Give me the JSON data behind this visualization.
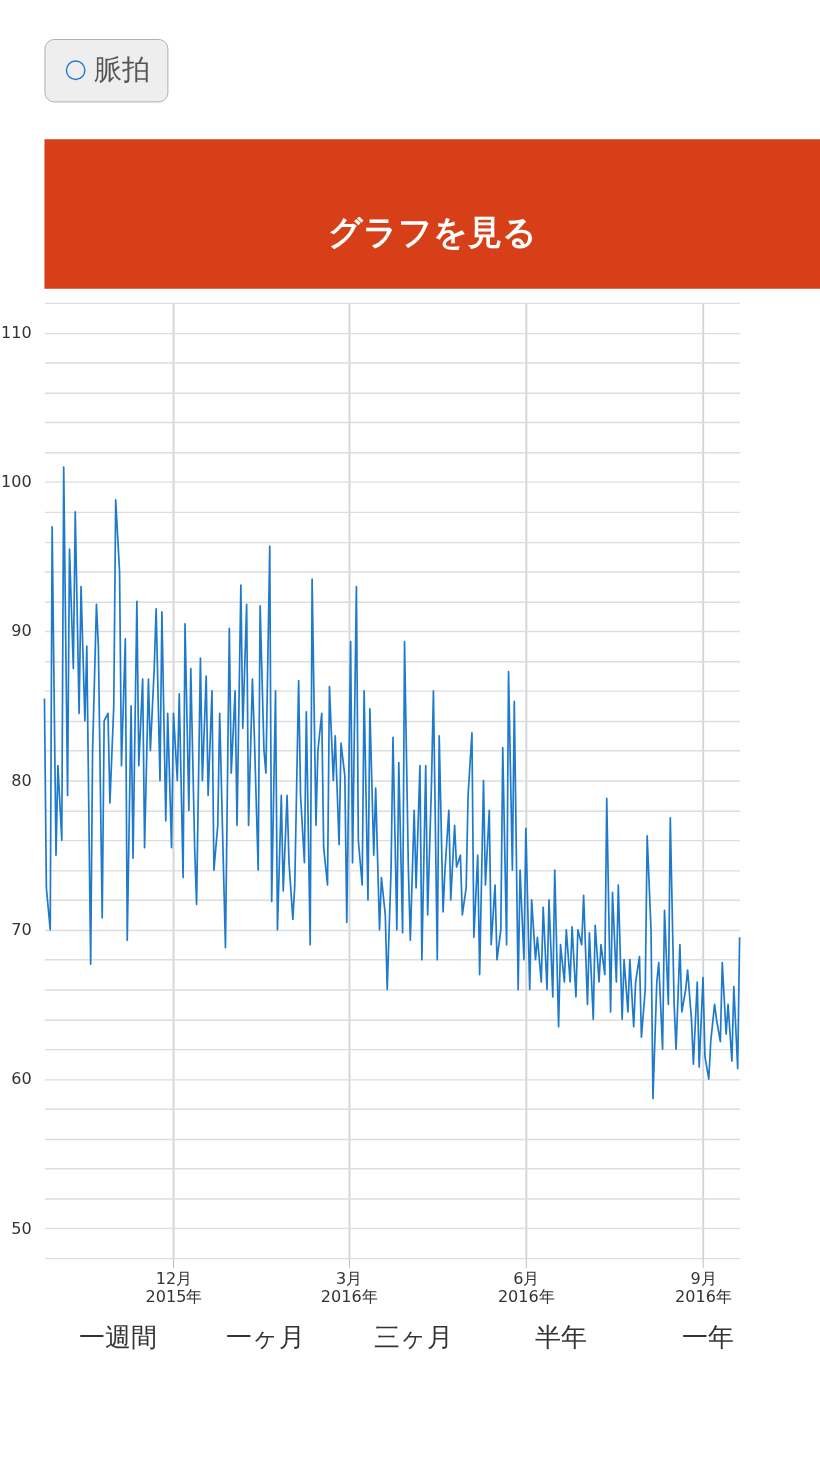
{
  "chart_data": {
    "type": "line",
    "title": "グラフを見る",
    "legend": "top",
    "grid": true,
    "marker": "none",
    "line_style": "solid",
    "xlim": [
      "2015-09-25",
      "2016-09-20"
    ],
    "xticks": [
      {
        "value": "2015-12-01",
        "label": "12月\n2015年"
      },
      {
        "value": "2016-03-01",
        "label": "3月\n2016年"
      },
      {
        "value": "2016-06-01",
        "label": "6月\n2016年"
      },
      {
        "value": "2016-09-01",
        "label": "9月\n2016年"
      }
    ],
    "ylim": [
      48,
      112
    ],
    "yticks": [
      {
        "value": 48,
        "label": null
      },
      50,
      {
        "value": 52,
        "label": null
      },
      {
        "value": 54,
        "label": null
      },
      {
        "value": 56,
        "label": null
      },
      {
        "value": 58,
        "label": null
      },
      60,
      {
        "value": 62,
        "label": null
      },
      {
        "value": 64,
        "label": null
      },
      {
        "value": 66,
        "label": null
      },
      {
        "value": 68,
        "label": null
      },
      70,
      {
        "value": 72,
        "label": null
      },
      {
        "value": 74,
        "label": null
      },
      {
        "value": 76,
        "label": null
      },
      {
        "value": 78,
        "label": null
      },
      80,
      {
        "value": 82,
        "label": null
      },
      {
        "value": 84,
        "label": null
      },
      {
        "value": 86,
        "label": null
      },
      {
        "value": 88,
        "label": null
      },
      90,
      {
        "value": 92,
        "label": null
      },
      {
        "value": 94,
        "label": null
      },
      {
        "value": 96,
        "label": null
      },
      {
        "value": 98,
        "label": null
      },
      100,
      {
        "value": 102,
        "label": null
      },
      {
        "value": 104,
        "label": null
      },
      {
        "value": 106,
        "label": null
      },
      {
        "value": 108,
        "label": null
      },
      110,
      {
        "value": 112,
        "label": null
      }
    ],
    "annotations": [
      "一週間",
      "一ヶ月",
      "三ヶ月",
      "半年",
      "一年"
    ],
    "x": [
      "2015-09-25",
      "2015-09-26",
      "2015-09-28",
      "2015-09-29",
      "2015-10-01",
      "2015-10-02",
      "2015-10-04",
      "2015-10-05",
      "2015-10-07",
      "2015-10-08",
      "2015-10-10",
      "2015-10-11",
      "2015-10-13",
      "2015-10-14",
      "2015-10-16",
      "2015-10-17",
      "2015-10-19",
      "2015-10-20",
      "2015-10-22",
      "2015-10-23",
      "2015-10-25",
      "2015-10-26",
      "2015-10-28",
      "2015-10-29",
      "2015-10-31",
      "2015-11-01",
      "2015-11-03",
      "2015-11-04",
      "2015-11-06",
      "2015-11-07",
      "2015-11-09",
      "2015-11-10",
      "2015-11-12",
      "2015-11-13",
      "2015-11-15",
      "2015-11-16",
      "2015-11-18",
      "2015-11-19",
      "2015-11-21",
      "2015-11-22",
      "2015-11-24",
      "2015-11-25",
      "2015-11-27",
      "2015-11-28",
      "2015-11-30",
      "2015-12-01",
      "2015-12-03",
      "2015-12-04",
      "2015-12-06",
      "2015-12-07",
      "2015-12-09",
      "2015-12-10",
      "2015-12-12",
      "2015-12-13",
      "2015-12-15",
      "2015-12-16",
      "2015-12-18",
      "2015-12-19",
      "2015-12-21",
      "2015-12-22",
      "2015-12-24",
      "2015-12-25",
      "2015-12-27",
      "2015-12-28",
      "2015-12-30",
      "2015-12-31",
      "2016-01-02",
      "2016-01-03",
      "2016-01-05",
      "2016-01-06",
      "2016-01-08",
      "2016-01-09",
      "2016-01-11",
      "2016-01-12",
      "2016-01-14",
      "2016-01-15",
      "2016-01-17",
      "2016-01-18",
      "2016-01-20",
      "2016-01-21",
      "2016-01-23",
      "2016-01-24",
      "2016-01-26",
      "2016-01-27",
      "2016-01-29",
      "2016-01-30",
      "2016-02-01",
      "2016-02-02",
      "2016-02-04",
      "2016-02-05",
      "2016-02-07",
      "2016-02-08",
      "2016-02-10",
      "2016-02-11",
      "2016-02-13",
      "2016-02-14",
      "2016-02-16",
      "2016-02-17",
      "2016-02-19",
      "2016-02-20",
      "2016-02-22",
      "2016-02-23",
      "2016-02-25",
      "2016-02-26",
      "2016-02-28",
      "2016-02-29",
      "2016-03-02",
      "2016-03-03",
      "2016-03-05",
      "2016-03-06",
      "2016-03-08",
      "2016-03-09",
      "2016-03-11",
      "2016-03-12",
      "2016-03-14",
      "2016-03-15",
      "2016-03-17",
      "2016-03-18",
      "2016-03-20",
      "2016-03-21",
      "2016-03-23",
      "2016-03-24",
      "2016-03-26",
      "2016-03-27",
      "2016-03-29",
      "2016-03-30",
      "2016-04-01",
      "2016-04-02",
      "2016-04-04",
      "2016-04-05",
      "2016-04-07",
      "2016-04-08",
      "2016-04-10",
      "2016-04-11",
      "2016-04-13",
      "2016-04-14",
      "2016-04-16",
      "2016-04-17",
      "2016-04-19",
      "2016-04-20",
      "2016-04-22",
      "2016-04-23",
      "2016-04-25",
      "2016-04-26",
      "2016-04-28",
      "2016-04-29",
      "2016-05-01",
      "2016-05-02",
      "2016-05-04",
      "2016-05-05",
      "2016-05-07",
      "2016-05-08",
      "2016-05-10",
      "2016-05-11",
      "2016-05-13",
      "2016-05-14",
      "2016-05-16",
      "2016-05-17",
      "2016-05-19",
      "2016-05-20",
      "2016-05-22",
      "2016-05-23",
      "2016-05-25",
      "2016-05-26",
      "2016-05-28",
      "2016-05-29",
      "2016-05-31",
      "2016-06-01",
      "2016-06-03",
      "2016-06-04",
      "2016-06-06",
      "2016-06-07",
      "2016-06-09",
      "2016-06-10",
      "2016-06-12",
      "2016-06-13",
      "2016-06-15",
      "2016-06-16",
      "2016-06-18",
      "2016-06-19",
      "2016-06-21",
      "2016-06-22",
      "2016-06-24",
      "2016-06-25",
      "2016-06-27",
      "2016-06-28",
      "2016-06-30",
      "2016-07-01",
      "2016-07-03",
      "2016-07-04",
      "2016-07-06",
      "2016-07-07",
      "2016-07-09",
      "2016-07-10",
      "2016-07-12",
      "2016-07-13",
      "2016-07-15",
      "2016-07-16",
      "2016-07-18",
      "2016-07-19",
      "2016-07-21",
      "2016-07-22",
      "2016-07-24",
      "2016-07-25",
      "2016-07-27",
      "2016-07-28",
      "2016-07-30",
      "2016-07-31",
      "2016-08-02",
      "2016-08-03",
      "2016-08-05",
      "2016-08-06",
      "2016-08-08",
      "2016-08-09",
      "2016-08-11",
      "2016-08-12",
      "2016-08-14",
      "2016-08-15",
      "2016-08-17",
      "2016-08-18",
      "2016-08-20",
      "2016-08-21",
      "2016-08-23",
      "2016-08-24",
      "2016-08-26",
      "2016-08-27",
      "2016-08-29",
      "2016-08-30",
      "2016-09-01",
      "2016-09-02",
      "2016-09-04",
      "2016-09-05",
      "2016-09-07",
      "2016-09-08",
      "2016-09-10",
      "2016-09-11",
      "2016-09-13",
      "2016-09-14",
      "2016-09-16",
      "2016-09-17",
      "2016-09-19",
      "2016-09-20"
    ],
    "series": [
      {
        "name": "脈拍",
        "color": "#1f7acc",
        "values": [
          85.5,
          72.8,
          70,
          97,
          75,
          81,
          76,
          101,
          79,
          95.5,
          87.5,
          98,
          84.5,
          93,
          84,
          89,
          67.7,
          82,
          91.8,
          89,
          70.8,
          84,
          84.5,
          78.5,
          85,
          98.8,
          94,
          81,
          89.5,
          69.3,
          85,
          74.8,
          92,
          81,
          86.8,
          75.5,
          86.8,
          82,
          87.5,
          91.5,
          80,
          91.3,
          77.3,
          84.5,
          75.5,
          84.5,
          80,
          85.8,
          73.5,
          90.5,
          78,
          87.5,
          75.5,
          71.7,
          88.2,
          80,
          87,
          79,
          86,
          74,
          77,
          84.5,
          73.9,
          68.8,
          90.2,
          80.5,
          86,
          77,
          93.1,
          83.5,
          91.8,
          77,
          86.8,
          83,
          74,
          91.7,
          82,
          80.5,
          95.7,
          71.9,
          86,
          70,
          79,
          72.6,
          79,
          74.5,
          70.7,
          73,
          86.7,
          79,
          74.5,
          84.6,
          69,
          93.5,
          77,
          82,
          84.5,
          75.5,
          73,
          86.3,
          80,
          83,
          75.7,
          82.5,
          80.3,
          70.5,
          89.3,
          74.5,
          93,
          76,
          73,
          86,
          72,
          84.8,
          75,
          79.5,
          70,
          73.5,
          71,
          66,
          74,
          82.9,
          70,
          81.2,
          69.8,
          89.3,
          74,
          69.3,
          78,
          72.8,
          81,
          68,
          81,
          71,
          79.8,
          86,
          68,
          83,
          71.2,
          74,
          78,
          72,
          77,
          74.2,
          75,
          71,
          72.8,
          79,
          83.2,
          69.5,
          75,
          67,
          80,
          73,
          78,
          69,
          73,
          68,
          70,
          82.2,
          69,
          87.3,
          74,
          85.3,
          66,
          74,
          68,
          76.8,
          66,
          72,
          68,
          69.5,
          66.5,
          71.5,
          66,
          72,
          65.5,
          74,
          63.5,
          69,
          66.5,
          70,
          66.5,
          70.2,
          65.5,
          70,
          69,
          72.3,
          65,
          69.8,
          64,
          70.3,
          66.5,
          69,
          67,
          78.8,
          64.5,
          72.5,
          66.5,
          73,
          64,
          68,
          64.5,
          68,
          63.5,
          66.5,
          68.2,
          62.8,
          66,
          76.3,
          70,
          58.7,
          66.5,
          67.8,
          62,
          71.3,
          65,
          77.5,
          65,
          62,
          69,
          64.5,
          66,
          67.3,
          64,
          61,
          66.5,
          60.8,
          66.8,
          61.5,
          60,
          62.5,
          65,
          64,
          62.5,
          67.8,
          63,
          65,
          61.2,
          66.2,
          60.7,
          69.5
        ]
      }
    ]
  }
}
